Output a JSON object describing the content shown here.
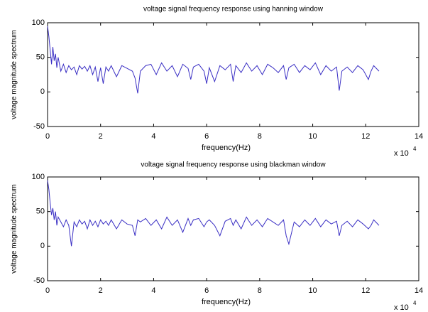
{
  "chart_data": [
    {
      "type": "line",
      "title": "voltage signal frequency response using hanning window",
      "xlabel": "frequency(Hz)",
      "ylabel": "voltage magnitude spectrum",
      "x_scale_label": "x 10",
      "x_scale_exponent": "4",
      "x": [
        0,
        0.05,
        0.1,
        0.15,
        0.2,
        0.25,
        0.3,
        0.35,
        0.4,
        0.5,
        0.6,
        0.7,
        0.8,
        0.9,
        1.0,
        1.1,
        1.2,
        1.3,
        1.4,
        1.5,
        1.6,
        1.7,
        1.8,
        1.9,
        2.0,
        2.1,
        2.2,
        2.3,
        2.4,
        2.6,
        2.8,
        3.0,
        3.2,
        3.3,
        3.4,
        3.5,
        3.7,
        3.9,
        4.1,
        4.3,
        4.5,
        4.7,
        4.9,
        5.1,
        5.3,
        5.4,
        5.5,
        5.7,
        5.9,
        6.0,
        6.1,
        6.3,
        6.5,
        6.7,
        6.9,
        7.0,
        7.1,
        7.3,
        7.5,
        7.7,
        7.9,
        8.1,
        8.3,
        8.5,
        8.7,
        8.9,
        9.0,
        9.1,
        9.3,
        9.5,
        9.7,
        9.9,
        10.1,
        10.3,
        10.5,
        10.7,
        10.9,
        11.0,
        11.1,
        11.3,
        11.5,
        11.7,
        11.9,
        12.1,
        12.2,
        12.3,
        12.5
      ],
      "series": [
        {
          "color": "#3a2fc4",
          "values": [
            95,
            80,
            60,
            40,
            65,
            45,
            55,
            35,
            50,
            30,
            40,
            28,
            38,
            32,
            36,
            25,
            38,
            33,
            37,
            30,
            38,
            25,
            36,
            15,
            35,
            12,
            36,
            30,
            38,
            22,
            38,
            34,
            30,
            20,
            -2,
            30,
            38,
            40,
            25,
            42,
            30,
            38,
            22,
            40,
            34,
            18,
            36,
            40,
            30,
            12,
            35,
            15,
            38,
            32,
            40,
            15,
            38,
            28,
            42,
            30,
            38,
            25,
            40,
            35,
            28,
            38,
            18,
            35,
            40,
            28,
            38,
            32,
            42,
            25,
            38,
            30,
            36,
            2,
            30,
            36,
            28,
            38,
            32,
            18,
            30,
            38,
            30
          ]
        }
      ],
      "xlim": [
        0,
        14
      ],
      "ylim": [
        -50,
        100
      ],
      "xticks": [
        0,
        2,
        4,
        6,
        8,
        10,
        12,
        14
      ],
      "yticks": [
        -50,
        0,
        50,
        100
      ]
    },
    {
      "type": "line",
      "title": "voltage signal frequency response using blackman window",
      "xlabel": "frequency(Hz)",
      "ylabel": "voltage magnitude spectrum",
      "x_scale_label": "x 10",
      "x_scale_exponent": "4",
      "x": [
        0,
        0.05,
        0.1,
        0.15,
        0.2,
        0.25,
        0.3,
        0.35,
        0.4,
        0.5,
        0.6,
        0.7,
        0.8,
        0.9,
        1.0,
        1.1,
        1.2,
        1.3,
        1.4,
        1.5,
        1.6,
        1.7,
        1.8,
        1.9,
        2.0,
        2.1,
        2.2,
        2.3,
        2.4,
        2.6,
        2.8,
        3.0,
        3.2,
        3.3,
        3.4,
        3.5,
        3.7,
        3.9,
        4.1,
        4.3,
        4.5,
        4.7,
        4.9,
        5.1,
        5.3,
        5.4,
        5.5,
        5.7,
        5.9,
        6.0,
        6.1,
        6.3,
        6.5,
        6.7,
        6.9,
        7.0,
        7.1,
        7.3,
        7.5,
        7.7,
        7.9,
        8.1,
        8.3,
        8.5,
        8.7,
        8.9,
        9.0,
        9.1,
        9.3,
        9.5,
        9.7,
        9.9,
        10.1,
        10.3,
        10.5,
        10.7,
        10.9,
        11.0,
        11.1,
        11.3,
        11.5,
        11.7,
        11.9,
        12.1,
        12.2,
        12.3,
        12.5
      ],
      "series": [
        {
          "color": "#3a2fc4",
          "values": [
            95,
            82,
            62,
            45,
            55,
            38,
            50,
            30,
            42,
            35,
            28,
            38,
            30,
            0,
            35,
            28,
            38,
            32,
            36,
            25,
            38,
            30,
            36,
            28,
            38,
            32,
            36,
            30,
            38,
            25,
            38,
            32,
            30,
            15,
            38,
            35,
            40,
            30,
            38,
            25,
            42,
            30,
            38,
            20,
            40,
            30,
            38,
            40,
            28,
            35,
            38,
            30,
            15,
            36,
            40,
            30,
            38,
            25,
            42,
            30,
            38,
            28,
            40,
            35,
            30,
            38,
            15,
            3,
            35,
            28,
            38,
            30,
            40,
            28,
            38,
            32,
            36,
            15,
            30,
            36,
            28,
            38,
            32,
            25,
            30,
            38,
            30
          ]
        }
      ],
      "xlim": [
        0,
        14
      ],
      "ylim": [
        -50,
        100
      ],
      "xticks": [
        0,
        2,
        4,
        6,
        8,
        10,
        12,
        14
      ],
      "yticks": [
        -50,
        0,
        50,
        100
      ]
    }
  ]
}
